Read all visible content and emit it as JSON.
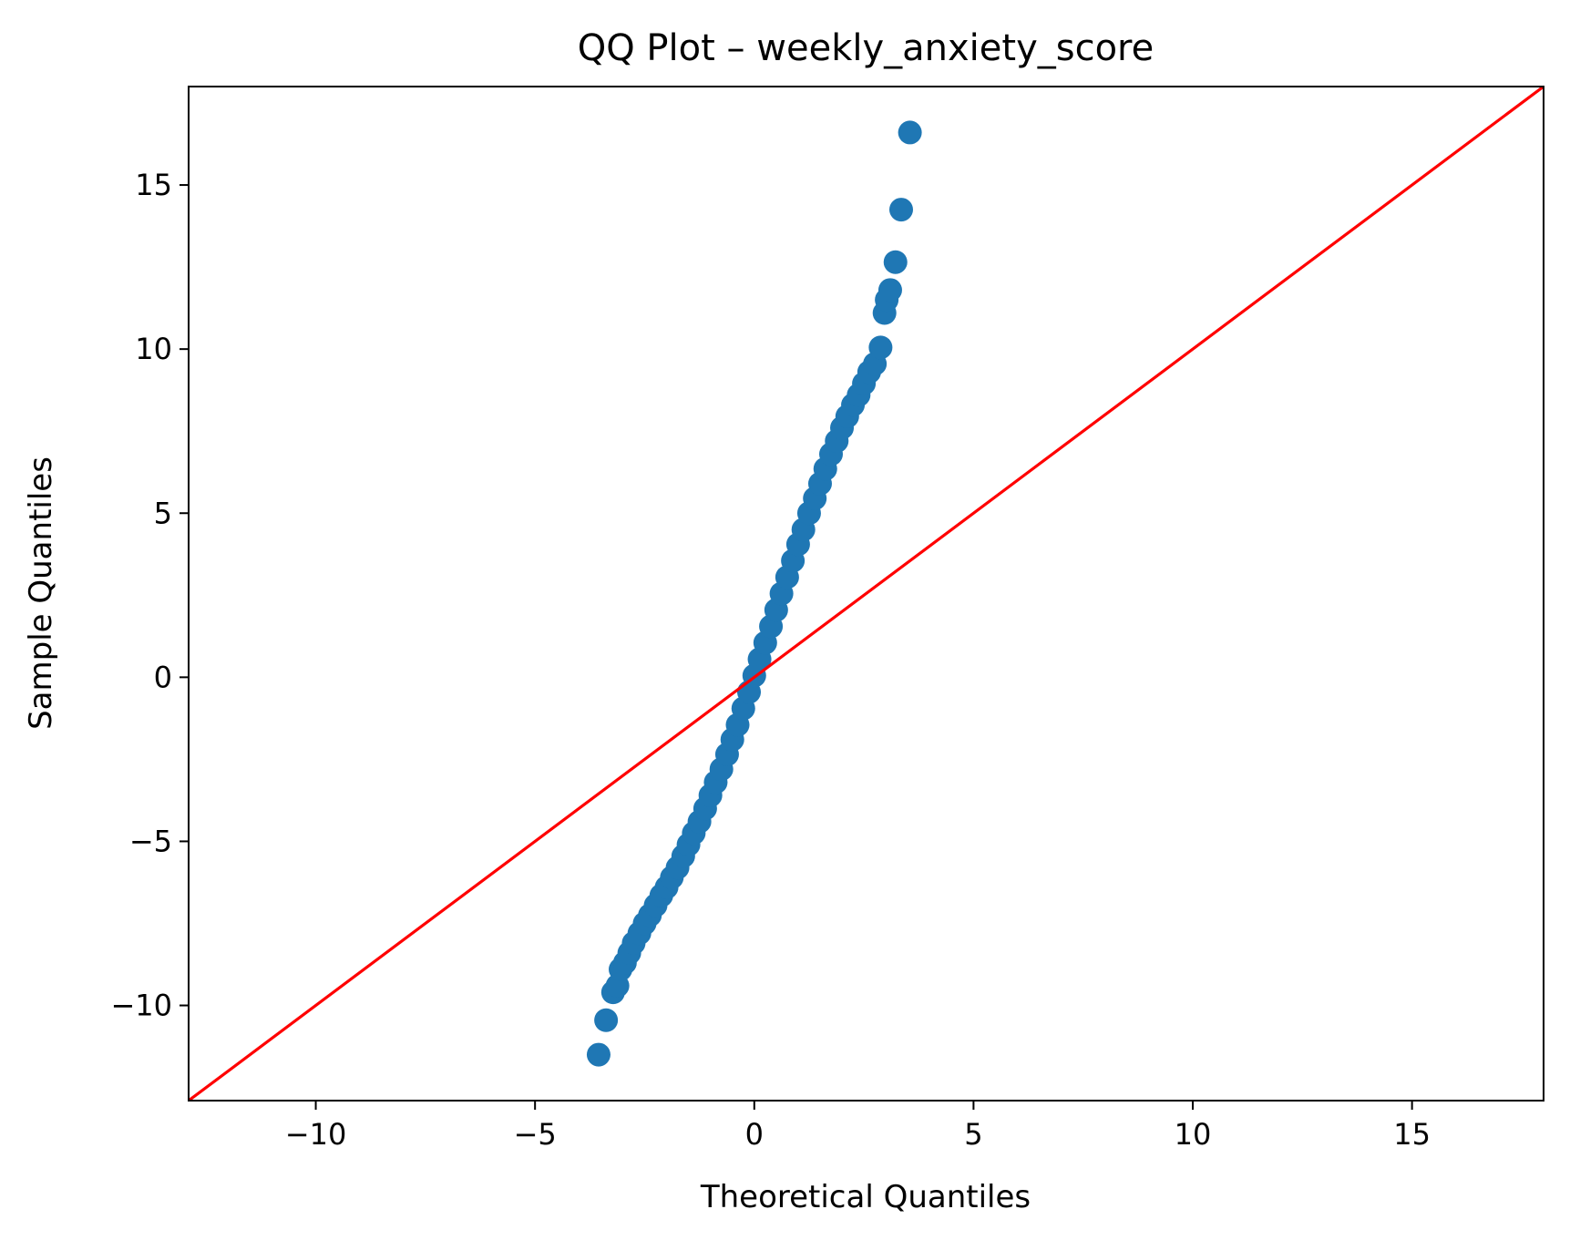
{
  "chart_data": {
    "type": "scatter",
    "title": "QQ Plot – weekly_anxiety_score",
    "xlabel": "Theoretical Quantiles",
    "ylabel": "Sample Quantiles",
    "xlim": [
      -12.9,
      18.0
    ],
    "ylim": [
      -12.9,
      18.0
    ],
    "xticks": [
      -10,
      -5,
      0,
      5,
      10,
      15
    ],
    "yticks": [
      -10,
      -5,
      0,
      5,
      10,
      15
    ],
    "xtick_labels": [
      "−10",
      "−5",
      "0",
      "5",
      "10",
      "15"
    ],
    "ytick_labels": [
      "−10",
      "−5",
      "0",
      "5",
      "10",
      "15"
    ],
    "grid": false,
    "colors": {
      "points": "#1f77b4",
      "reference_line": "#ff0000"
    },
    "reference_line": {
      "x": [
        -12.9,
        18.0
      ],
      "y": [
        -12.9,
        18.0
      ]
    },
    "series": [
      {
        "points": [
          [
            -3.55,
            -11.5
          ],
          [
            -3.38,
            -10.45
          ],
          [
            -3.22,
            -9.6
          ],
          [
            -3.12,
            -9.4
          ],
          [
            -3.05,
            -8.9
          ],
          [
            -2.95,
            -8.7
          ],
          [
            -2.85,
            -8.4
          ],
          [
            -2.75,
            -8.1
          ],
          [
            -2.62,
            -7.8
          ],
          [
            -2.5,
            -7.5
          ],
          [
            -2.38,
            -7.25
          ],
          [
            -2.25,
            -6.95
          ],
          [
            -2.12,
            -6.65
          ],
          [
            -2.0,
            -6.4
          ],
          [
            -1.88,
            -6.1
          ],
          [
            -1.75,
            -5.8
          ],
          [
            -1.62,
            -5.45
          ],
          [
            -1.5,
            -5.1
          ],
          [
            -1.38,
            -4.75
          ],
          [
            -1.25,
            -4.4
          ],
          [
            -1.12,
            -4.0
          ],
          [
            -1.0,
            -3.6
          ],
          [
            -0.88,
            -3.2
          ],
          [
            -0.75,
            -2.8
          ],
          [
            -0.62,
            -2.35
          ],
          [
            -0.5,
            -1.9
          ],
          [
            -0.38,
            -1.45
          ],
          [
            -0.25,
            -0.95
          ],
          [
            -0.12,
            -0.45
          ],
          [
            0.0,
            0.05
          ],
          [
            0.12,
            0.55
          ],
          [
            0.25,
            1.05
          ],
          [
            0.38,
            1.55
          ],
          [
            0.5,
            2.05
          ],
          [
            0.62,
            2.55
          ],
          [
            0.75,
            3.05
          ],
          [
            0.88,
            3.55
          ],
          [
            1.0,
            4.05
          ],
          [
            1.12,
            4.5
          ],
          [
            1.25,
            5.0
          ],
          [
            1.38,
            5.45
          ],
          [
            1.5,
            5.9
          ],
          [
            1.62,
            6.35
          ],
          [
            1.75,
            6.8
          ],
          [
            1.88,
            7.2
          ],
          [
            2.0,
            7.6
          ],
          [
            2.12,
            7.95
          ],
          [
            2.25,
            8.3
          ],
          [
            2.38,
            8.6
          ],
          [
            2.5,
            8.95
          ],
          [
            2.62,
            9.3
          ],
          [
            2.75,
            9.55
          ],
          [
            2.88,
            10.05
          ],
          [
            2.97,
            11.1
          ],
          [
            3.02,
            11.5
          ],
          [
            3.1,
            11.8
          ],
          [
            3.22,
            12.65
          ],
          [
            3.35,
            14.25
          ],
          [
            3.55,
            16.6
          ]
        ]
      }
    ]
  }
}
